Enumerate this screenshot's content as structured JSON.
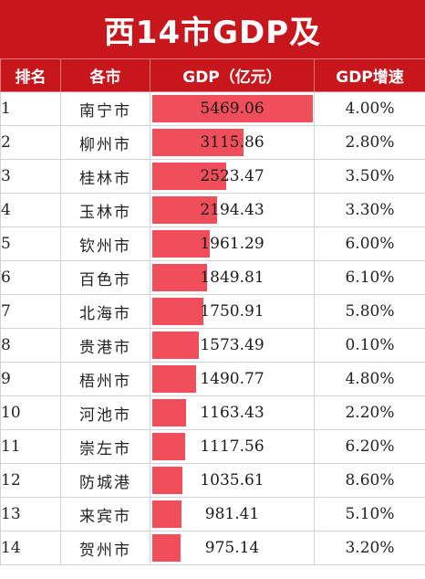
{
  "title": "西14市GDP及",
  "headers": {
    "rank": "排名",
    "city": "各市",
    "gdp": "GDP（亿元）",
    "growth": "GDP增速"
  },
  "colors": {
    "header_bg": "#c8161d",
    "bar": "#f04e5a"
  },
  "chart_data": {
    "type": "table",
    "columns": [
      "排名",
      "各市",
      "GDP（亿元）",
      "GDP增速"
    ],
    "rows": [
      {
        "rank": "1",
        "city": "南宁市",
        "gdp": 5469.06,
        "gdp_text": "5469.06",
        "growth": "4.00%"
      },
      {
        "rank": "2",
        "city": "柳州市",
        "gdp": 3115.86,
        "gdp_text": "3115.86",
        "growth": "2.80%"
      },
      {
        "rank": "3",
        "city": "桂林市",
        "gdp": 2523.47,
        "gdp_text": "2523.47",
        "growth": "3.50%"
      },
      {
        "rank": "4",
        "city": "玉林市",
        "gdp": 2194.43,
        "gdp_text": "2194.43",
        "growth": "3.30%"
      },
      {
        "rank": "5",
        "city": "钦州市",
        "gdp": 1961.29,
        "gdp_text": "1961.29",
        "growth": "6.00%"
      },
      {
        "rank": "6",
        "city": "百色市",
        "gdp": 1849.81,
        "gdp_text": "1849.81",
        "growth": "6.10%"
      },
      {
        "rank": "7",
        "city": "北海市",
        "gdp": 1750.91,
        "gdp_text": "1750.91",
        "growth": "5.80%"
      },
      {
        "rank": "8",
        "city": "贵港市",
        "gdp": 1573.49,
        "gdp_text": "1573.49",
        "growth": "0.10%"
      },
      {
        "rank": "9",
        "city": "梧州市",
        "gdp": 1490.77,
        "gdp_text": "1490.77",
        "growth": "4.80%"
      },
      {
        "rank": "10",
        "city": "河池市",
        "gdp": 1163.43,
        "gdp_text": "1163.43",
        "growth": "2.20%"
      },
      {
        "rank": "11",
        "city": "崇左市",
        "gdp": 1117.56,
        "gdp_text": "1117.56",
        "growth": "6.20%"
      },
      {
        "rank": "12",
        "city": "防城港",
        "gdp": 1035.61,
        "gdp_text": "1035.61",
        "growth": "8.60%"
      },
      {
        "rank": "13",
        "city": "来宾市",
        "gdp": 981.41,
        "gdp_text": "981.41",
        "growth": "5.10%"
      },
      {
        "rank": "14",
        "city": "贺州市",
        "gdp": 975.14,
        "gdp_text": "975.14",
        "growth": "3.20%"
      }
    ]
  }
}
